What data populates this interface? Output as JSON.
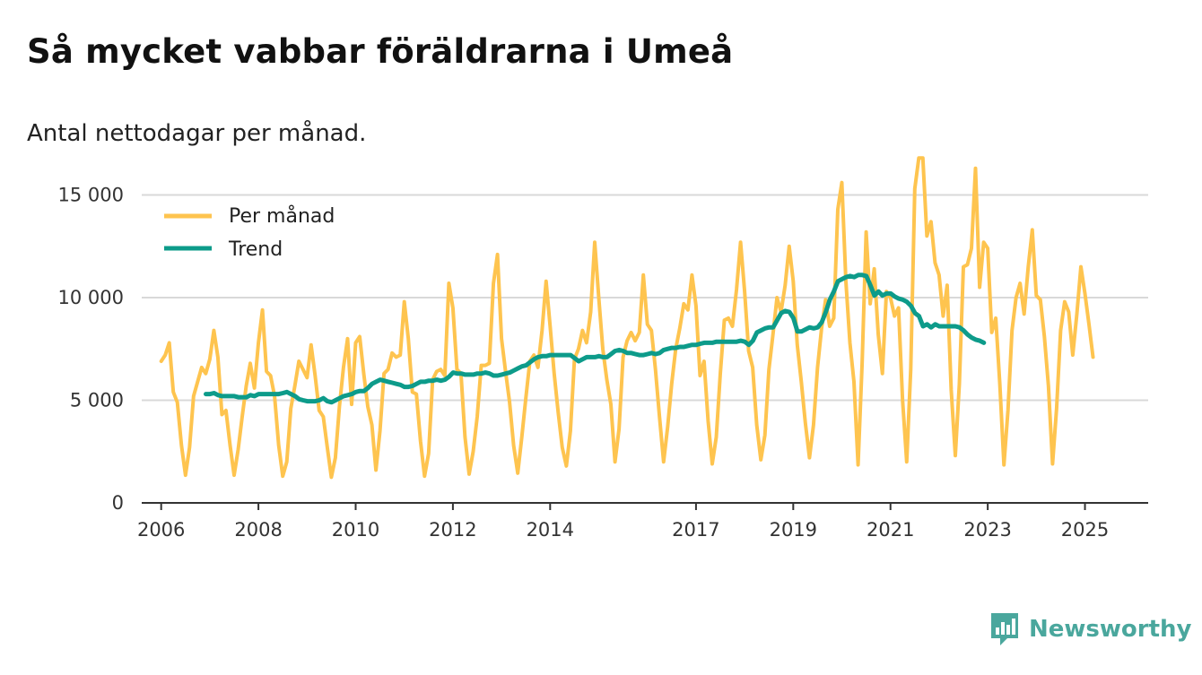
{
  "header": {
    "title": "Så mycket vabbar föräldrarna i Umeå",
    "subtitle": "Antal nettodagar per månad."
  },
  "brand": {
    "name": "Newsworthy",
    "color": "#4aa79d",
    "icon": "newsworthy-logo-icon"
  },
  "chart_data": {
    "type": "line",
    "title": "Så mycket vabbar föräldrarna i Umeå",
    "subtitle": "Antal nettodagar per månad.",
    "xlabel": "",
    "ylabel": "",
    "xlim": [
      2005.6,
      2026.3
    ],
    "ylim": [
      0,
      16200
    ],
    "grid": true,
    "legend_position": "top-left",
    "x_ticks": [
      2006,
      2008,
      2010,
      2012,
      2014,
      2017,
      2019,
      2021,
      2023,
      2025
    ],
    "x_tick_labels": [
      "2006",
      "2008",
      "2010",
      "2012",
      "2014",
      "2017",
      "2019",
      "2021",
      "2023",
      "2025"
    ],
    "y_ticks": [
      0,
      5000,
      10000,
      15000
    ],
    "y_tick_labels": [
      "0",
      "5 000",
      "10 000",
      "15 000"
    ],
    "colors": {
      "per_manad": "#fec44f",
      "trend": "#0d9b8a",
      "grid": "#d9d9d9",
      "axis": "#333333"
    },
    "series": [
      {
        "name": "Per månad",
        "x_start": 2006.0,
        "x_step": 0.08333,
        "values": [
          6900,
          7200,
          7800,
          5400,
          4900,
          2800,
          1350,
          2700,
          5200,
          5900,
          6600,
          6300,
          7000,
          8400,
          7100,
          4300,
          4500,
          2800,
          1350,
          2600,
          4200,
          5700,
          6800,
          5600,
          7800,
          9400,
          6400,
          6200,
          5200,
          2800,
          1300,
          2000,
          4600,
          5700,
          6900,
          6500,
          6100,
          7700,
          6200,
          4500,
          4200,
          2700,
          1250,
          2200,
          4700,
          6600,
          8000,
          4800,
          7800,
          8100,
          6300,
          4700,
          3800,
          1600,
          3500,
          6300,
          6500,
          7300,
          7100,
          7200,
          9800,
          8000,
          5400,
          5300,
          3000,
          1300,
          2400,
          6000,
          6400,
          6500,
          6200,
          10700,
          9500,
          6500,
          6300,
          3200,
          1400,
          2500,
          4200,
          6700,
          6700,
          6800,
          10700,
          12100,
          8000,
          6400,
          4900,
          2800,
          1450,
          3200,
          5100,
          6900,
          7200,
          6600,
          8400,
          10800,
          8600,
          6300,
          4400,
          2700,
          1800,
          3500,
          7000,
          7500,
          8400,
          7800,
          9300,
          12700,
          10000,
          7500,
          6000,
          4800,
          2000,
          3600,
          7100,
          7900,
          8300,
          7900,
          8300,
          11100,
          8700,
          8400,
          6500,
          4200,
          2000,
          3700,
          5800,
          7500,
          8500,
          9700,
          9400,
          11100,
          9600,
          6200,
          6900,
          4000,
          1900,
          3200,
          6300,
          8900,
          9000,
          8600,
          10400,
          12700,
          10300,
          7400,
          6600,
          3800,
          2100,
          3300,
          6500,
          8200,
          10000,
          9300,
          10600,
          12500,
          10800,
          7700,
          5900,
          3900,
          2200,
          3800,
          6600,
          8500,
          9900,
          8600,
          9000,
          14300,
          15600,
          10800,
          7800,
          5900,
          1850,
          6800,
          13200,
          9700,
          11400,
          8200,
          6300,
          10300,
          10000,
          9100,
          9500,
          5000,
          2000,
          6500,
          15300,
          16800,
          16800,
          13000,
          13700,
          11700,
          11100,
          9100,
          10600,
          5500,
          2300,
          5800,
          11500,
          11600,
          12400,
          16300,
          10500,
          12700,
          12400,
          8300,
          9000,
          5800,
          1850,
          4500,
          8400,
          10000,
          10700,
          9200,
          11500,
          13300,
          10100,
          9900,
          8100,
          5700,
          1900,
          4600,
          8400,
          9800,
          9300,
          7200,
          9200,
          11500,
          10200,
          8700,
          7100
        ]
      },
      {
        "name": "Trend",
        "x_start": 2006.92,
        "x_step": 0.08333,
        "values": [
          5300,
          5300,
          5350,
          5250,
          5200,
          5200,
          5200,
          5200,
          5150,
          5150,
          5150,
          5250,
          5200,
          5300,
          5300,
          5300,
          5300,
          5300,
          5300,
          5350,
          5400,
          5300,
          5200,
          5050,
          5000,
          4950,
          4950,
          4950,
          5000,
          5100,
          4950,
          4900,
          5000,
          5100,
          5200,
          5250,
          5300,
          5400,
          5450,
          5450,
          5600,
          5800,
          5900,
          6000,
          5950,
          5900,
          5850,
          5800,
          5750,
          5650,
          5650,
          5700,
          5800,
          5900,
          5900,
          5950,
          5950,
          6000,
          5950,
          6000,
          6150,
          6350,
          6300,
          6300,
          6250,
          6250,
          6250,
          6300,
          6300,
          6350,
          6300,
          6200,
          6200,
          6250,
          6300,
          6350,
          6450,
          6550,
          6650,
          6700,
          6850,
          7000,
          7100,
          7150,
          7150,
          7200,
          7200,
          7200,
          7200,
          7200,
          7200,
          7050,
          6900,
          7000,
          7100,
          7100,
          7100,
          7150,
          7100,
          7100,
          7250,
          7400,
          7450,
          7400,
          7300,
          7300,
          7250,
          7200,
          7200,
          7250,
          7300,
          7250,
          7300,
          7450,
          7500,
          7550,
          7550,
          7600,
          7600,
          7650,
          7700,
          7700,
          7750,
          7800,
          7800,
          7800,
          7850,
          7850,
          7850,
          7850,
          7850,
          7850,
          7900,
          7850,
          7700,
          7900,
          8300,
          8400,
          8500,
          8550,
          8550,
          8900,
          9250,
          9350,
          9300,
          9000,
          8350,
          8350,
          8450,
          8550,
          8500,
          8550,
          8800,
          9300,
          9900,
          10300,
          10800,
          10900,
          11000,
          11050,
          11000,
          11100,
          11100,
          11050,
          10600,
          10100,
          10300,
          10100,
          10200,
          10200,
          10050,
          9950,
          9900,
          9800,
          9600,
          9250,
          9100,
          8600,
          8700,
          8550,
          8700,
          8600,
          8600,
          8600,
          8600,
          8600,
          8550,
          8400,
          8200,
          8050,
          7950,
          7900,
          7800
        ]
      }
    ],
    "legend": [
      {
        "label": "Per månad",
        "color": "#fec44f"
      },
      {
        "label": "Trend",
        "color": "#0d9b8a"
      }
    ]
  }
}
